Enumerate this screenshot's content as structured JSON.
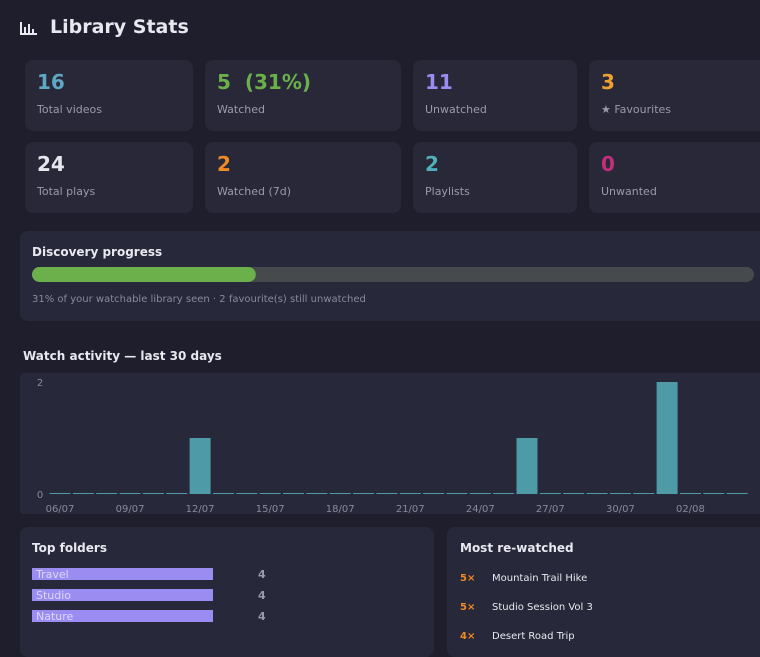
{
  "header": {
    "title": "Library Stats"
  },
  "stats": [
    {
      "value": "16",
      "label": "Total videos",
      "color": "#5fa8c4"
    },
    {
      "value": "5  (31%)",
      "label": "Watched",
      "color": "#6bb04a"
    },
    {
      "value": "11",
      "label": "Unwatched",
      "color": "#9b8cf2"
    },
    {
      "value": "3",
      "label": "★ Favourites",
      "color": "#f0a030"
    },
    {
      "value": "24",
      "label": "Total plays",
      "color": "#e6e6ee"
    },
    {
      "value": "2",
      "label": "Watched (7d)",
      "color": "#f08a24"
    },
    {
      "value": "2",
      "label": "Playlists",
      "color": "#4fb0b8"
    },
    {
      "value": "0",
      "label": "Unwanted",
      "color": "#c0307a"
    }
  ],
  "discovery": {
    "title": "Discovery progress",
    "value": 31,
    "xlim": [
      0,
      100
    ],
    "color": "#6bb04a",
    "note": "31% of your watchable library seen · 2 favourite(s) still unwatched"
  },
  "chart_data": {
    "type": "bar",
    "title": "Watch activity — last 30 days",
    "categories": [
      "06/07",
      null,
      null,
      "09/07",
      null,
      null,
      "12/07",
      null,
      null,
      "15/07",
      null,
      null,
      "18/07",
      null,
      null,
      "21/07",
      null,
      null,
      "24/07",
      null,
      null,
      "27/07",
      null,
      null,
      "30/07",
      null,
      null,
      "02/08",
      null,
      null
    ],
    "values": [
      0,
      0,
      0,
      0,
      0,
      0,
      1,
      0,
      0,
      0,
      0,
      0,
      0,
      0,
      0,
      0,
      0,
      0,
      0,
      0,
      1,
      0,
      0,
      0,
      0,
      0,
      2,
      0,
      0,
      0
    ],
    "color": "#4e9aa6",
    "ylim": [
      0,
      2
    ],
    "yticks": [
      0,
      2
    ],
    "grid": false
  },
  "folders": {
    "title": "Top folders",
    "color": "#9b8cf2",
    "items": [
      {
        "name": "Travel",
        "value": 4
      },
      {
        "name": "Studio",
        "value": 4
      },
      {
        "name": "Nature",
        "value": 4
      }
    ]
  },
  "rewatched": {
    "title": "Most re-watched",
    "items": [
      {
        "count": "5×",
        "name": "Mountain Trail Hike"
      },
      {
        "count": "5×",
        "name": "Studio Session Vol 3"
      },
      {
        "count": "4×",
        "name": "Desert Road Trip"
      }
    ]
  }
}
